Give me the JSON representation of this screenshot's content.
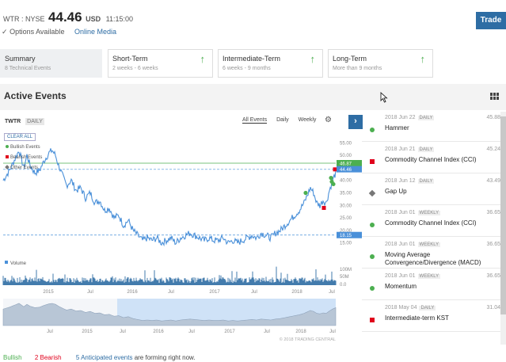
{
  "header": {
    "ticker": "WTR : NYSE",
    "price": "44.46",
    "currency": "USD",
    "time": "11:15:00",
    "trade_label": "Trade",
    "options_label": "Options Available",
    "media_label": "Online Media"
  },
  "cards": [
    {
      "title": "Summary",
      "sub": "8 Technical Events",
      "selected": true
    },
    {
      "title": "Short-Term",
      "sub": "2 weeks - 6 weeks"
    },
    {
      "title": "Intermediate-Term",
      "sub": "6 weeks - 9 months"
    },
    {
      "title": "Long-Term",
      "sub": "More than 9 months"
    }
  ],
  "active_events": {
    "title": "Active Events"
  },
  "chart_panel": {
    "symbol": "TWTR",
    "interval": "DAILY",
    "filters": [
      "All Events",
      "Daily",
      "Weekly"
    ],
    "clear_all": "CLEAR ALL",
    "legend": [
      "Bullish Events",
      "Bearish Events",
      "Other Events"
    ],
    "volume_label": "Volume",
    "copyright": "© 2018 TRADING CENTRAL"
  },
  "chart_data": {
    "type": "line",
    "y_ticks": [
      "55.00",
      "50.00",
      "45.00",
      "40.00",
      "35.00",
      "30.00",
      "25.00",
      "20.00",
      "15.00"
    ],
    "x_ticks": [
      "2015",
      "Jul",
      "2016",
      "Jul",
      "2017",
      "Jul",
      "2018",
      "Jul"
    ],
    "vol_ticks": [
      "100M",
      "50M",
      "0.0"
    ],
    "nav_ticks": [
      "Jul",
      "2015",
      "Jul",
      "2016",
      "Jul",
      "2017",
      "Jul",
      "2018",
      "Jul"
    ],
    "price_labels": {
      "upper": "46.87",
      "current": "44.46",
      "support": "18.15"
    },
    "ylim": [
      13,
      57
    ]
  },
  "events": [
    {
      "date": "2018 Jun 22",
      "tf": "DAILY",
      "value": "45.88",
      "name": "Hammer",
      "kind": "bull"
    },
    {
      "date": "2018 Jun 21",
      "tf": "DAILY",
      "value": "45.24",
      "name": "Commodity Channel Index (CCI)",
      "kind": "bear"
    },
    {
      "date": "2018 Jun 12",
      "tf": "DAILY",
      "value": "43.49",
      "name": "Gap Up",
      "kind": "other"
    },
    {
      "date": "2018 Jun 01",
      "tf": "WEEKLY",
      "value": "36.65",
      "name": "Commodity Channel Index (CCI)",
      "kind": "bull"
    },
    {
      "date": "2018 Jun 01",
      "tf": "WEEKLY",
      "value": "36.65",
      "name": "Moving Average Convergence/Divergence (MACD)",
      "kind": "bull"
    },
    {
      "date": "2018 Jun 01",
      "tf": "WEEKLY",
      "value": "36.65",
      "name": "Momentum",
      "kind": "bull"
    },
    {
      "date": "2018 May 04",
      "tf": "DAILY",
      "value": "31.04",
      "name": "Intermediate-term KST",
      "kind": "bear"
    }
  ],
  "footer": {
    "bullish": "Bullish",
    "bearish": "2 Bearish",
    "anticipated": "5 Anticipated events",
    "rest": "are forming right now."
  }
}
